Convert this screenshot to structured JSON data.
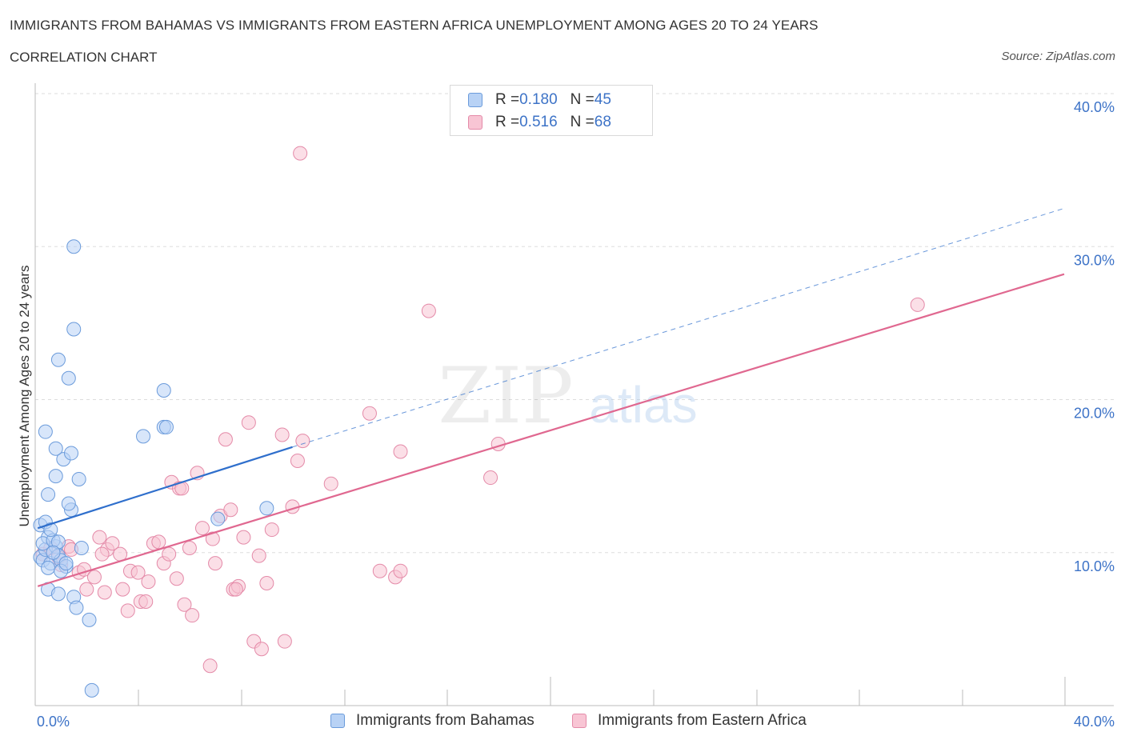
{
  "header": {
    "title": "IMMIGRANTS FROM BAHAMAS VS IMMIGRANTS FROM EASTERN AFRICA UNEMPLOYMENT AMONG AGES 20 TO 24 YEARS",
    "subtitle": "CORRELATION CHART",
    "source": "Source: ZipAtlas.com"
  },
  "watermark": {
    "zip": "ZIP",
    "atlas": "atlas"
  },
  "legend": {
    "bahamas": {
      "r_label": "R = ",
      "r_value": "0.180",
      "n_label": "N = ",
      "n_value": "45"
    },
    "eafrica": {
      "r_label": "R = ",
      "r_value": "0.516",
      "n_label": "N = ",
      "n_value": "68"
    }
  },
  "colors": {
    "bahamas_fill": "#b8d2f5",
    "bahamas_stroke": "#6b9bdb",
    "bahamas_line": "#2f6fcc",
    "eafrica_fill": "#f8c5d4",
    "eafrica_stroke": "#e48aa8",
    "eafrica_line": "#e06890",
    "axis_label": "#3d73c7",
    "grid": "#dddddd"
  },
  "chart_data": {
    "type": "scatter",
    "title": "IMMIGRANTS FROM BAHAMAS VS IMMIGRANTS FROM EASTERN AFRICA UNEMPLOYMENT AMONG AGES 20 TO 24 YEARS",
    "xlabel": "",
    "ylabel": "Unemployment Among Ages 20 to 24 years",
    "xlim": [
      0,
      40
    ],
    "ylim": [
      0,
      40
    ],
    "x_tick_labels": [
      "0.0%",
      "40.0%"
    ],
    "y_ticks": [
      10,
      20,
      30,
      40
    ],
    "y_tick_labels": [
      "10.0%",
      "20.0%",
      "30.0%",
      "40.0%"
    ],
    "grid": true,
    "legend_position": "top-center",
    "series": [
      {
        "name": "Immigrants from Bahamas",
        "R": 0.18,
        "N": 45,
        "trend": {
          "x0": 0.1,
          "y0": 11.6,
          "x1": 10.0,
          "y1": 16.9,
          "dash_to_x": 40.0,
          "dash_to_y": 32.5
        },
        "points": [
          [
            0.2,
            9.7
          ],
          [
            0.3,
            9.5
          ],
          [
            0.4,
            10.2
          ],
          [
            0.5,
            11.0
          ],
          [
            0.3,
            10.6
          ],
          [
            0.6,
            9.3
          ],
          [
            0.8,
            10.4
          ],
          [
            0.5,
            9.0
          ],
          [
            0.9,
            9.8
          ],
          [
            0.7,
            10.8
          ],
          [
            0.2,
            11.8
          ],
          [
            1.0,
            9.5
          ],
          [
            0.4,
            12.0
          ],
          [
            1.2,
            9.1
          ],
          [
            0.6,
            11.5
          ],
          [
            0.9,
            10.7
          ],
          [
            1.4,
            12.8
          ],
          [
            1.3,
            13.2
          ],
          [
            0.5,
            13.8
          ],
          [
            0.8,
            15.0
          ],
          [
            1.7,
            14.8
          ],
          [
            1.1,
            16.1
          ],
          [
            1.4,
            16.5
          ],
          [
            0.8,
            16.8
          ],
          [
            0.4,
            17.9
          ],
          [
            1.3,
            21.4
          ],
          [
            0.9,
            22.6
          ],
          [
            1.5,
            30.0
          ],
          [
            1.5,
            24.6
          ],
          [
            4.2,
            17.6
          ],
          [
            5.0,
            20.6
          ],
          [
            5.0,
            18.2
          ],
          [
            5.1,
            18.2
          ],
          [
            0.5,
            7.6
          ],
          [
            0.9,
            7.3
          ],
          [
            1.5,
            7.1
          ],
          [
            1.6,
            6.4
          ],
          [
            2.1,
            5.6
          ],
          [
            2.2,
            1.0
          ],
          [
            9.0,
            12.9
          ],
          [
            7.1,
            12.2
          ],
          [
            1.0,
            8.8
          ],
          [
            1.2,
            9.3
          ],
          [
            0.7,
            10.0
          ],
          [
            1.8,
            10.3
          ]
        ]
      },
      {
        "name": "Immigrants from Eastern Africa",
        "R": 0.516,
        "N": 68,
        "trend": {
          "x0": 0.1,
          "y0": 7.8,
          "x1": 40.0,
          "y1": 28.2
        },
        "points": [
          [
            0.3,
            9.9
          ],
          [
            0.6,
            10.3
          ],
          [
            1.0,
            9.2
          ],
          [
            1.3,
            10.4
          ],
          [
            1.7,
            8.7
          ],
          [
            1.9,
            8.9
          ],
          [
            2.3,
            8.4
          ],
          [
            2.5,
            11.0
          ],
          [
            2.8,
            10.2
          ],
          [
            3.0,
            10.6
          ],
          [
            3.3,
            9.9
          ],
          [
            3.4,
            7.6
          ],
          [
            3.7,
            8.8
          ],
          [
            4.0,
            8.7
          ],
          [
            4.1,
            6.8
          ],
          [
            4.3,
            6.8
          ],
          [
            4.6,
            10.6
          ],
          [
            4.8,
            10.7
          ],
          [
            5.0,
            9.3
          ],
          [
            5.2,
            9.9
          ],
          [
            5.3,
            14.6
          ],
          [
            5.6,
            14.2
          ],
          [
            5.7,
            14.2
          ],
          [
            5.8,
            6.6
          ],
          [
            6.0,
            10.3
          ],
          [
            6.1,
            5.9
          ],
          [
            6.3,
            15.2
          ],
          [
            6.5,
            11.6
          ],
          [
            6.8,
            2.6
          ],
          [
            7.0,
            9.3
          ],
          [
            7.2,
            12.4
          ],
          [
            7.4,
            17.4
          ],
          [
            7.6,
            12.8
          ],
          [
            7.7,
            7.6
          ],
          [
            7.9,
            7.8
          ],
          [
            8.1,
            11.0
          ],
          [
            8.3,
            18.5
          ],
          [
            8.5,
            4.2
          ],
          [
            8.7,
            9.8
          ],
          [
            8.8,
            3.7
          ],
          [
            9.0,
            8.0
          ],
          [
            9.2,
            11.5
          ],
          [
            9.6,
            17.7
          ],
          [
            9.7,
            4.2
          ],
          [
            10.0,
            13.0
          ],
          [
            10.2,
            16.0
          ],
          [
            10.4,
            17.3
          ],
          [
            11.5,
            14.5
          ],
          [
            13.0,
            19.1
          ],
          [
            13.4,
            8.8
          ],
          [
            14.0,
            8.4
          ],
          [
            14.2,
            8.8
          ],
          [
            14.2,
            16.6
          ],
          [
            15.3,
            25.8
          ],
          [
            17.7,
            14.9
          ],
          [
            18.0,
            17.1
          ],
          [
            10.3,
            36.1
          ],
          [
            34.3,
            26.2
          ],
          [
            0.9,
            9.7
          ],
          [
            1.4,
            10.2
          ],
          [
            2.0,
            7.6
          ],
          [
            2.7,
            7.4
          ],
          [
            3.6,
            6.2
          ],
          [
            4.4,
            8.1
          ],
          [
            5.5,
            8.3
          ],
          [
            6.9,
            10.9
          ],
          [
            7.8,
            7.6
          ],
          [
            2.6,
            9.9
          ]
        ]
      }
    ]
  }
}
